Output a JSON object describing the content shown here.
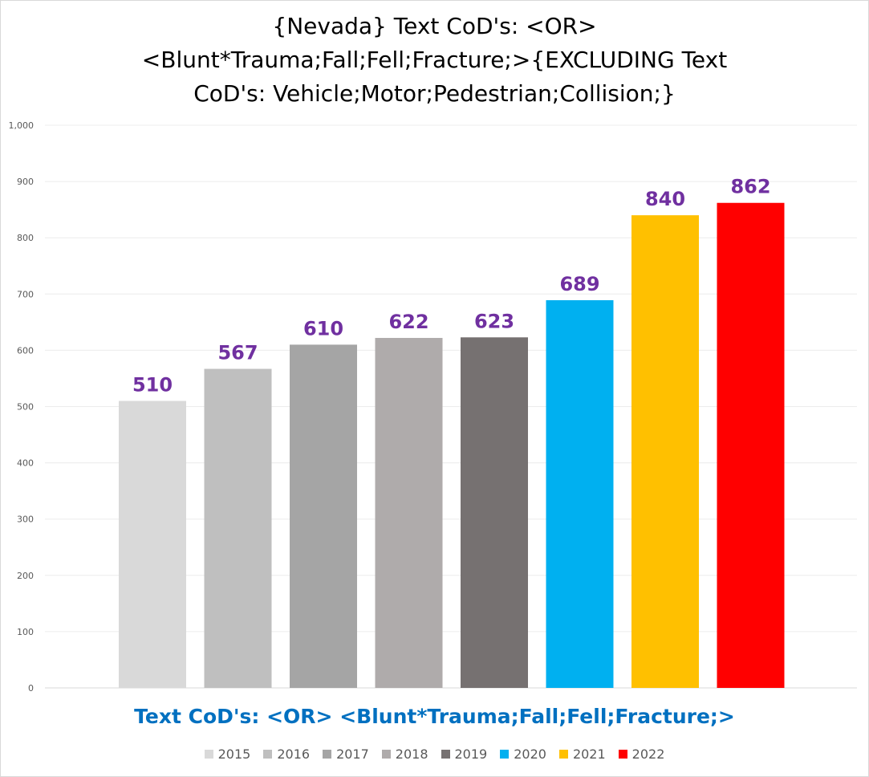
{
  "chart_data": {
    "type": "bar",
    "title_lines": [
      "{Nevada}  Text CoD's: <OR>",
      "<Blunt*Trauma;Fall;Fell;Fracture;>{EXCLUDING Text",
      "CoD's: Vehicle;Motor;Pedestrian;Collision;}"
    ],
    "xlabel": "Text CoD's: <OR> <Blunt*Trauma;Fall;Fell;Fracture;>",
    "ylabel": "",
    "ylim": [
      0,
      1000
    ],
    "yticks": [
      0,
      100,
      200,
      300,
      400,
      500,
      600,
      700,
      800,
      900,
      1000
    ],
    "ytick_labels": [
      "0",
      "100",
      "200",
      "300",
      "400",
      "500",
      "600",
      "700",
      "800",
      "900",
      "1,000"
    ],
    "grid": true,
    "legend_position": "bottom",
    "data_label_color": "#7030a0",
    "series": [
      {
        "name": "2015",
        "values": [
          510
        ],
        "color": "#d9d9d9"
      },
      {
        "name": "2016",
        "values": [
          567
        ],
        "color": "#bfbfbf"
      },
      {
        "name": "2017",
        "values": [
          610
        ],
        "color": "#a5a5a5"
      },
      {
        "name": "2018",
        "values": [
          622
        ],
        "color": "#afabab"
      },
      {
        "name": "2019",
        "values": [
          623
        ],
        "color": "#767171"
      },
      {
        "name": "2020",
        "values": [
          689
        ],
        "color": "#00b0f0"
      },
      {
        "name": "2021",
        "values": [
          840
        ],
        "color": "#ffc000"
      },
      {
        "name": "2022",
        "values": [
          862
        ],
        "color": "#ff0000"
      }
    ]
  }
}
